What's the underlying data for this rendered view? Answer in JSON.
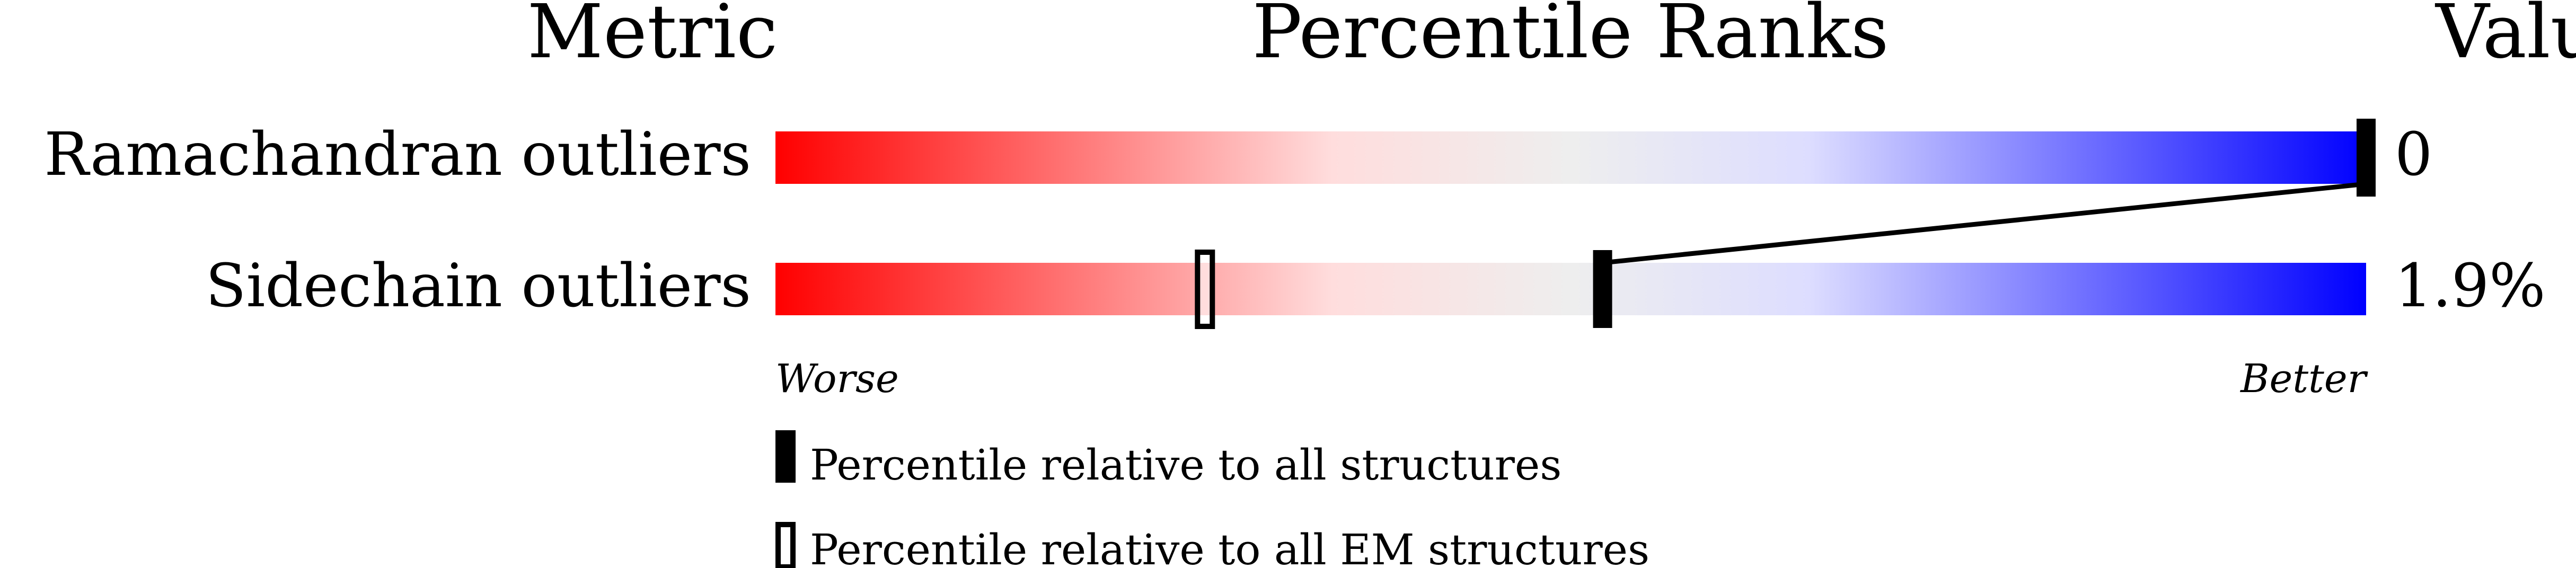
{
  "chart_data": {
    "type": "percentile-bar",
    "headers": {
      "metric": "Metric",
      "ranks": "Percentile Ranks",
      "value": "Value"
    },
    "axis": {
      "min_label": "Worse",
      "max_label": "Better",
      "range": [
        0,
        100
      ]
    },
    "gradient_colors": [
      "#ff0000",
      "#ffdddd",
      "#eeeeee",
      "#ddddff",
      "#0000ff"
    ],
    "metrics": [
      {
        "name": "Ramachandran outliers",
        "value": "0",
        "percentile_all": 100,
        "percentile_em": null
      },
      {
        "name": "Sidechain outliers",
        "value": "1.9%",
        "percentile_all": 52,
        "percentile_em": 27
      }
    ],
    "legend": [
      {
        "marker": "filled",
        "label": "Percentile relative to all structures"
      },
      {
        "marker": "open",
        "label": "Percentile relative to all EM structures"
      }
    ]
  }
}
